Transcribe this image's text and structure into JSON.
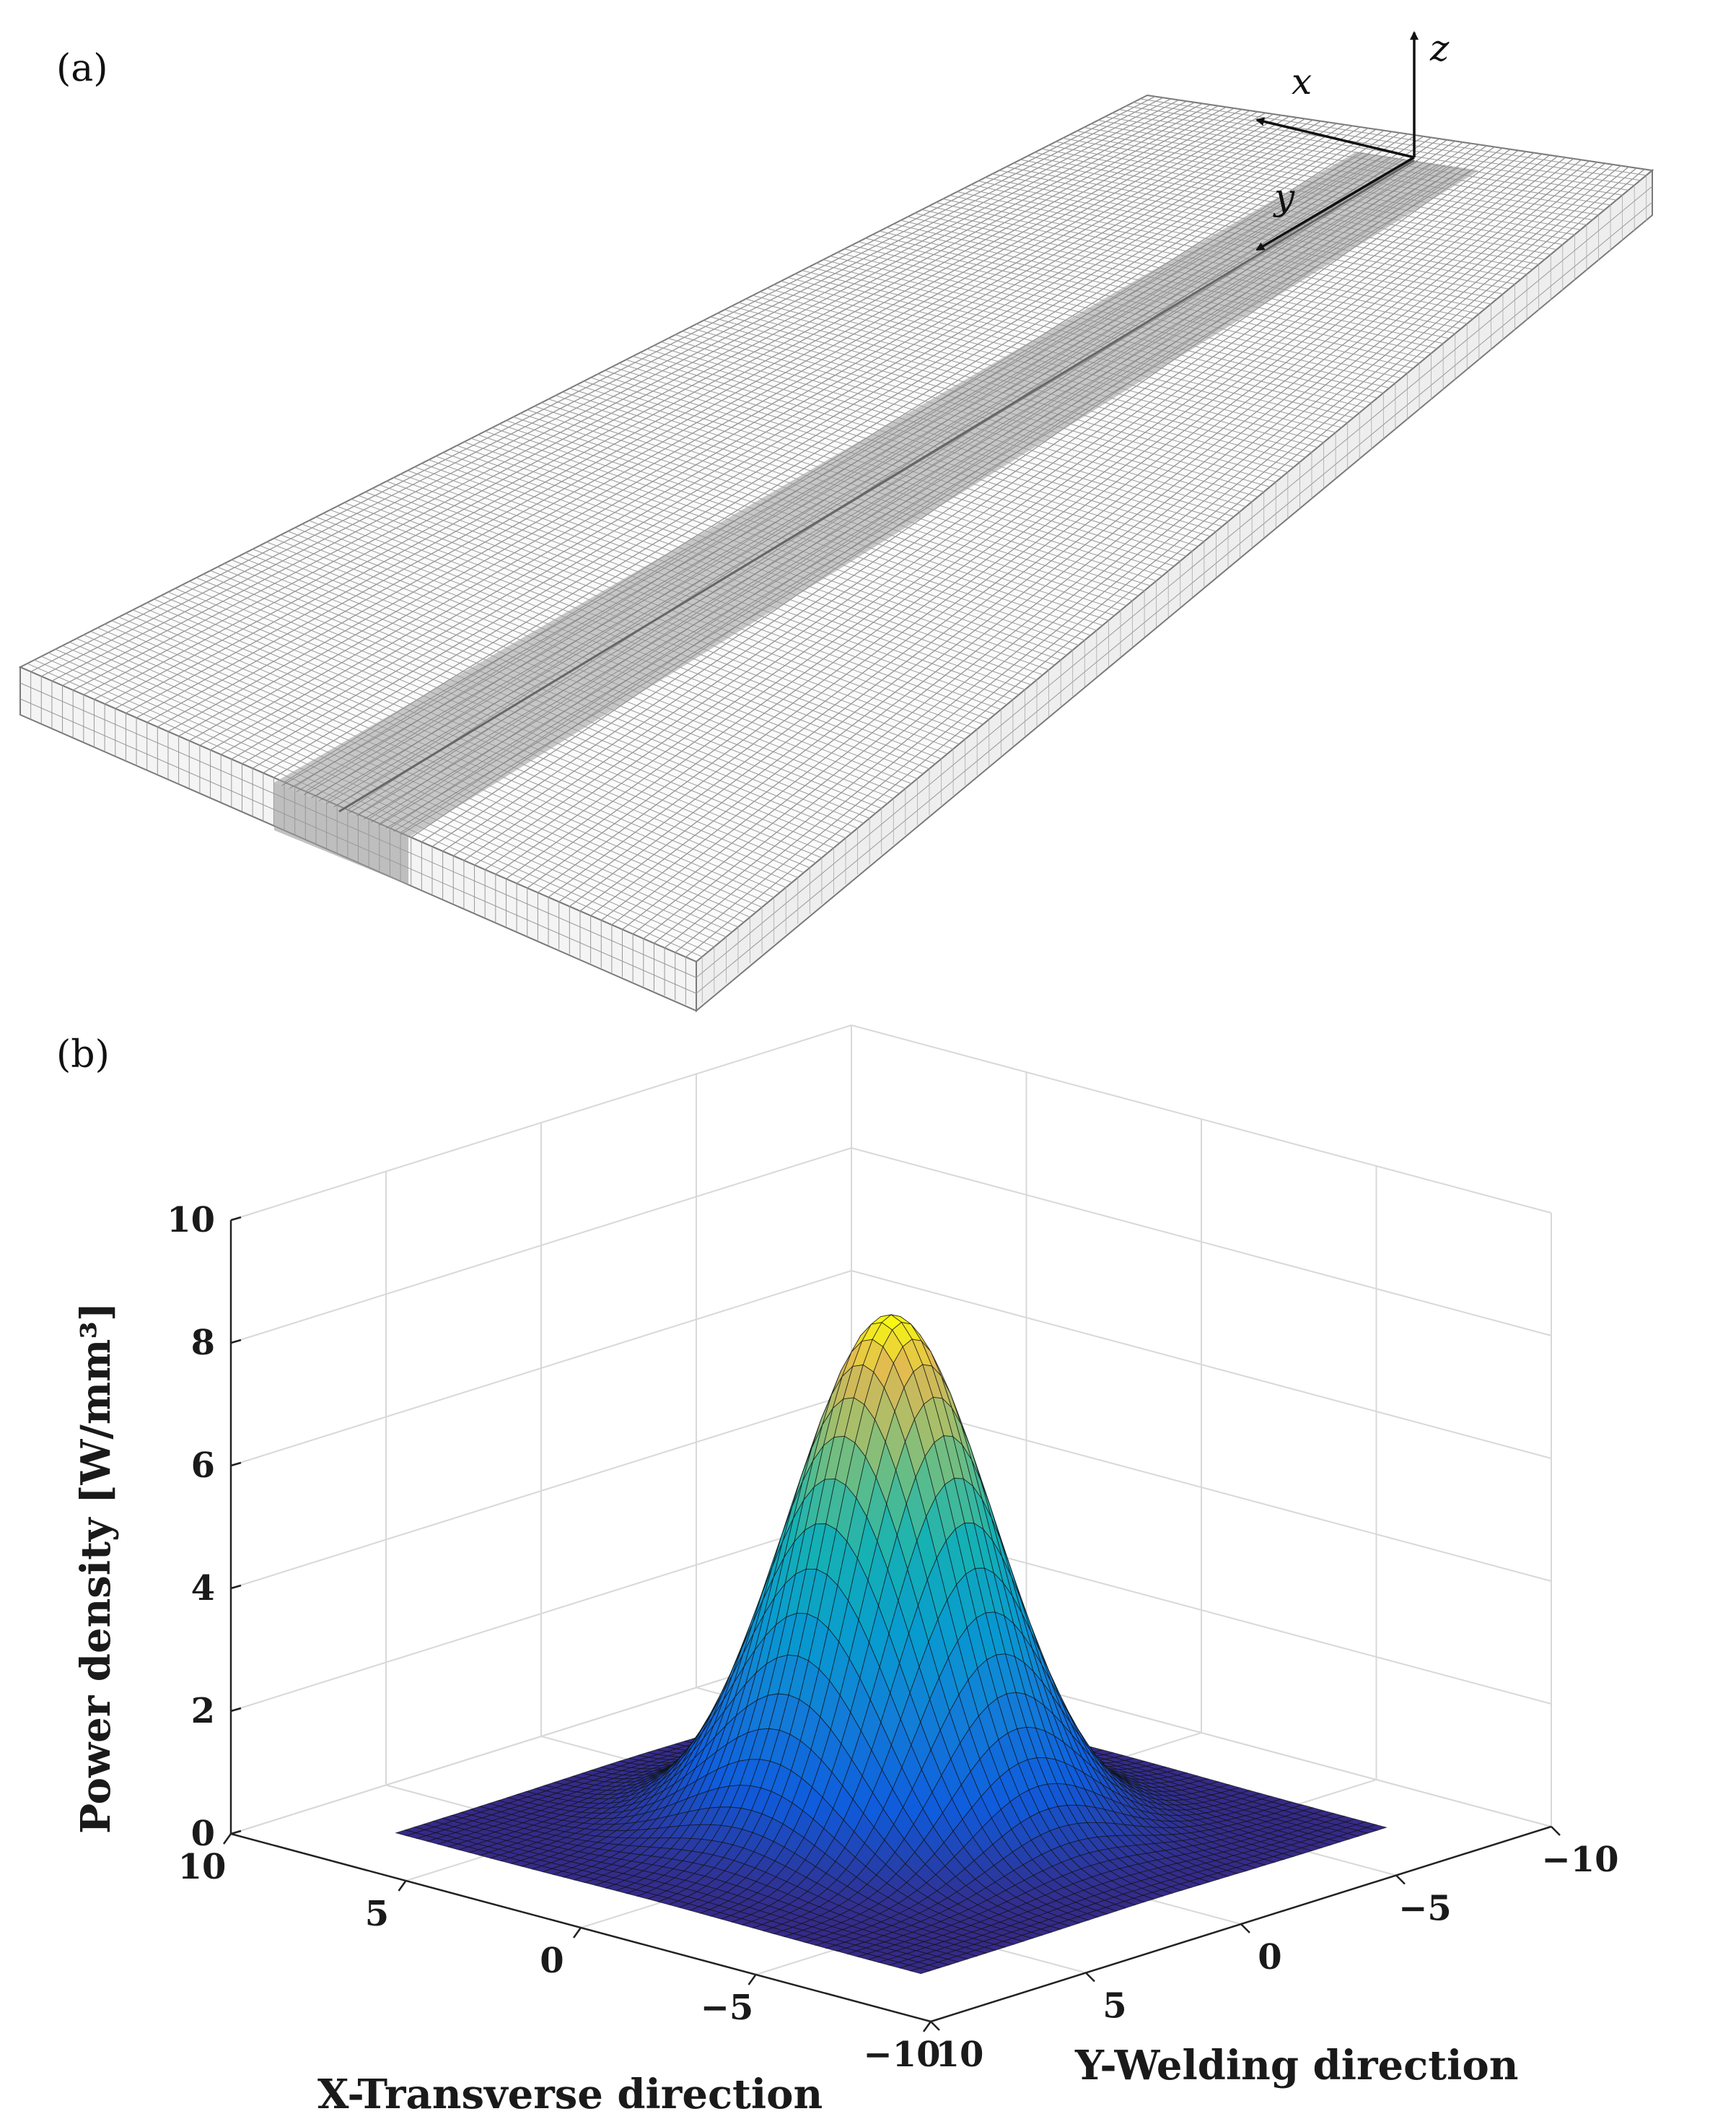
{
  "panel_a": {
    "label": "(a)",
    "axes": {
      "x": "x",
      "y": "y",
      "z": "z"
    }
  },
  "panel_b": {
    "label": "(b)"
  },
  "chart_data": {
    "type": "surface",
    "title": "",
    "xlabel": "X-Transverse direction",
    "ylabel": "Y-Welding direction",
    "zlabel": "Power density [W/mm³]",
    "xlim": [
      -10,
      10
    ],
    "ylim": [
      -10,
      10
    ],
    "zlim": [
      0,
      10
    ],
    "x_ticks": [
      "10",
      "5",
      "0",
      "−5",
      "−10"
    ],
    "y_ticks": [
      "10",
      "5",
      "0",
      "−5",
      "−10"
    ],
    "z_ticks": [
      "0",
      "2",
      "4",
      "6",
      "8",
      "10"
    ],
    "peak": {
      "x": 0,
      "y": 0,
      "value": 8.4
    },
    "gaussian_sigma": 2.2,
    "grid": true,
    "colormap": "parula"
  }
}
